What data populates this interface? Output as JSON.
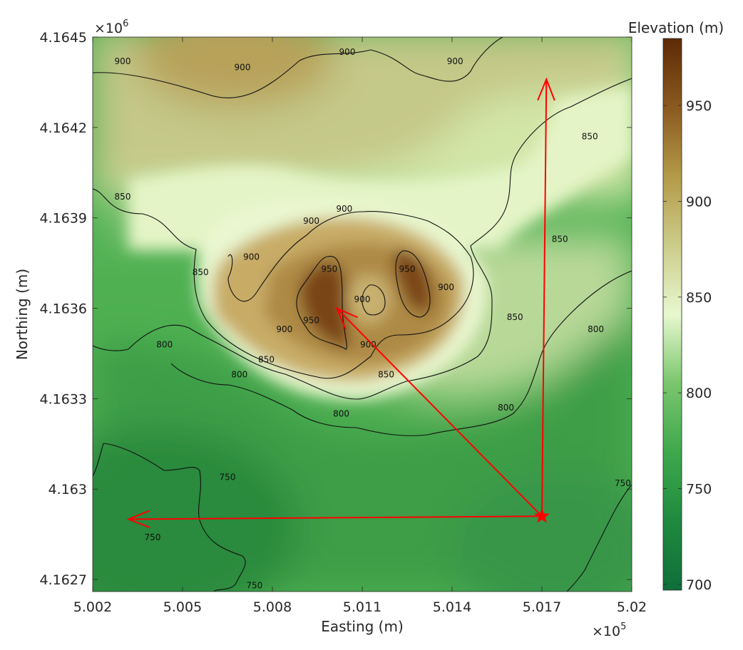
{
  "chart_data": {
    "type": "heatmap",
    "title": "",
    "xlabel": "Easting (m)",
    "ylabel": "Northing (m)",
    "x_exponent_label": "×10",
    "x_exponent_power": "5",
    "y_exponent_label": "×10",
    "y_exponent_power": "6",
    "xlim": [
      500200,
      502000
    ],
    "ylim": [
      416266,
      416450
    ],
    "x_ticks": [
      {
        "value": 500200,
        "label": "5.002"
      },
      {
        "value": 500500,
        "label": "5.005"
      },
      {
        "value": 500800,
        "label": "5.008"
      },
      {
        "value": 501100,
        "label": "5.011"
      },
      {
        "value": 501400,
        "label": "5.014"
      },
      {
        "value": 501700,
        "label": "5.017"
      },
      {
        "value": 502000,
        "label": "5.02"
      }
    ],
    "y_ticks": [
      {
        "value": 416270,
        "label": "4.1627"
      },
      {
        "value": 416300,
        "label": "4.163"
      },
      {
        "value": 416330,
        "label": "4.1633"
      },
      {
        "value": 416360,
        "label": "4.1636"
      },
      {
        "value": 416390,
        "label": "4.1639"
      },
      {
        "value": 416420,
        "label": "4.1642"
      },
      {
        "value": 416450,
        "label": "4.1645"
      }
    ],
    "colorbar": {
      "title": "Elevation (m)",
      "range": [
        697,
        985
      ],
      "ticks": [
        {
          "value": 700,
          "label": "700"
        },
        {
          "value": 750,
          "label": "750"
        },
        {
          "value": 800,
          "label": "800"
        },
        {
          "value": 850,
          "label": "850"
        },
        {
          "value": 900,
          "label": "900"
        },
        {
          "value": 950,
          "label": "950"
        }
      ],
      "colormap": [
        "#0f6e3a",
        "#1f8a3f",
        "#3ea84d",
        "#7ac66e",
        "#e8f8cf",
        "#cccc8a",
        "#b39a48",
        "#8a5a20",
        "#5c2a06"
      ]
    },
    "contour_levels": [
      750,
      800,
      850,
      900,
      950
    ],
    "contour_labels": [
      {
        "value": 501050,
        "y": 416445,
        "label": "900"
      },
      {
        "value": 500300,
        "y": 416442,
        "label": "900"
      },
      {
        "value": 500700,
        "y": 416440,
        "label": "900"
      },
      {
        "value": 501410,
        "y": 416442,
        "label": "900"
      },
      {
        "value": 501860,
        "y": 416417,
        "label": "850"
      },
      {
        "value": 500300,
        "y": 416397,
        "label": "850"
      },
      {
        "value": 501760,
        "y": 416383,
        "label": "850"
      },
      {
        "value": 501040,
        "y": 416393,
        "label": "900"
      },
      {
        "value": 500930,
        "y": 416389,
        "label": "900"
      },
      {
        "value": 500730,
        "y": 416377,
        "label": "900"
      },
      {
        "value": 500560,
        "y": 416372,
        "label": "850"
      },
      {
        "value": 500990,
        "y": 416373,
        "label": "950"
      },
      {
        "value": 501250,
        "y": 416373,
        "label": "950"
      },
      {
        "value": 501100,
        "y": 416363,
        "label": "900"
      },
      {
        "value": 501380,
        "y": 416367,
        "label": "900"
      },
      {
        "value": 501610,
        "y": 416357,
        "label": "850"
      },
      {
        "value": 500930,
        "y": 416356,
        "label": "950"
      },
      {
        "value": 500840,
        "y": 416353,
        "label": "900"
      },
      {
        "value": 500440,
        "y": 416348,
        "label": "800"
      },
      {
        "value": 501880,
        "y": 416353,
        "label": "800"
      },
      {
        "value": 501120,
        "y": 416348,
        "label": "900"
      },
      {
        "value": 500780,
        "y": 416343,
        "label": "850"
      },
      {
        "value": 500690,
        "y": 416338,
        "label": "800"
      },
      {
        "value": 501180,
        "y": 416338,
        "label": "850"
      },
      {
        "value": 501030,
        "y": 416325,
        "label": "800"
      },
      {
        "value": 501580,
        "y": 416327,
        "label": "800"
      },
      {
        "value": 500650,
        "y": 416304,
        "label": "750"
      },
      {
        "value": 501970,
        "y": 416302,
        "label": "750"
      },
      {
        "value": 500400,
        "y": 416284,
        "label": "750"
      },
      {
        "value": 500740,
        "y": 416268,
        "label": "750"
      }
    ],
    "annotations": {
      "origin": {
        "x": 501700,
        "y": 416291,
        "marker": "star",
        "color": "#ff0000"
      },
      "arrows": [
        {
          "x": 501715,
          "y": 416436,
          "direction": "north"
        },
        {
          "x": 500320,
          "y": 416290,
          "direction": "west"
        },
        {
          "x": 501015,
          "y": 416360,
          "direction": "northwest"
        }
      ],
      "color": "#ff0000"
    }
  }
}
